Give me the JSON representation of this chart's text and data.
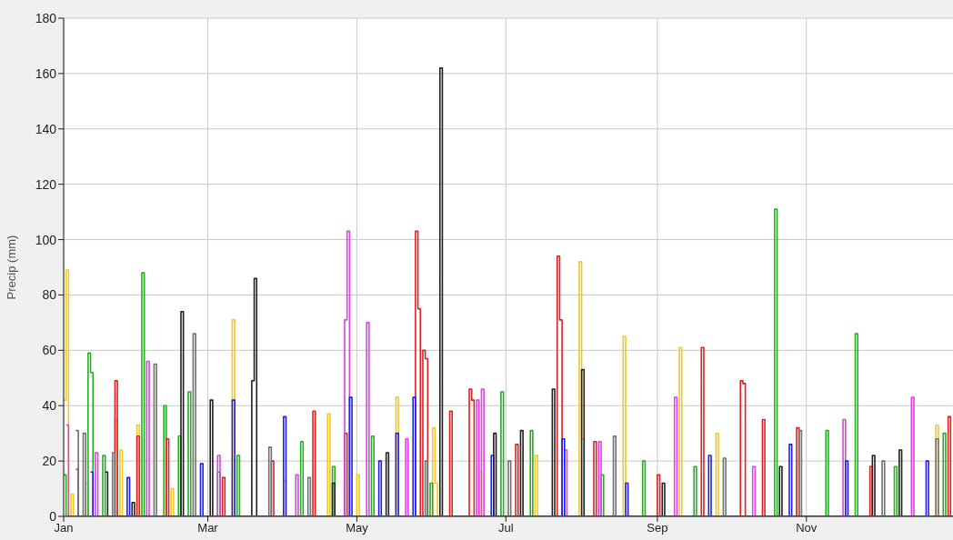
{
  "chart_data": {
    "type": "step",
    "ylabel": "Precip (mm)",
    "xlim": [
      "--01-01",
      "--12-31"
    ],
    "xticks": [
      {
        "value": "--01-01",
        "label": "Jan"
      },
      {
        "value": "--03-01",
        "label": "Mar"
      },
      {
        "value": "--05-01",
        "label": "May"
      },
      {
        "value": "--07-01",
        "label": "Jul"
      },
      {
        "value": "--09-01",
        "label": "Sep"
      },
      {
        "value": "--11-01",
        "label": "Nov"
      }
    ],
    "ylim": [
      0,
      180
    ],
    "yticks": [
      0,
      20,
      40,
      60,
      80,
      100,
      120,
      140,
      160,
      180
    ],
    "grid": true,
    "legend": false,
    "marker": "none",
    "line_style": "solid",
    "series": [
      {
        "color": "#f0c828",
        "x": [
          "--01-01",
          "--01-02",
          "--01-03",
          "--01-04",
          "--01-05",
          "--01-10",
          "--01-11",
          "--01-22",
          "--01-23",
          "--01-24",
          "--01-25",
          "--01-31",
          "--02-01",
          "--02-14",
          "--02-15",
          "--03-11",
          "--03-12",
          "--04-01",
          "--04-02",
          "--04-19",
          "--04-20",
          "--05-01",
          "--05-02",
          "--05-17",
          "--05-18",
          "--06-01",
          "--06-02",
          "--06-03",
          "--06-20",
          "--06-21",
          "--07-13",
          "--07-14",
          "--07-31",
          "--08-01",
          "--08-02",
          "--08-18",
          "--08-19",
          "--09-10",
          "--09-11",
          "--09-25",
          "--09-26",
          "--10-28",
          "--10-29",
          "--12-24",
          "--12-25",
          "--12-31"
        ],
        "values": [
          42,
          89,
          0,
          8,
          0,
          12,
          0,
          35,
          0,
          24,
          0,
          33,
          0,
          10,
          0,
          71,
          0,
          13,
          0,
          37,
          0,
          15,
          0,
          43,
          0,
          32,
          12,
          0,
          16,
          0,
          22,
          0,
          92,
          28,
          0,
          65,
          0,
          61,
          0,
          30,
          0,
          20,
          0,
          33,
          0,
          0
        ]
      },
      {
        "color": "#22b022",
        "x": [
          "--01-01",
          "--01-02",
          "--01-11",
          "--01-12",
          "--01-13",
          "--01-17",
          "--01-18",
          "--02-02",
          "--02-03",
          "--02-11",
          "--02-12",
          "--02-17",
          "--02-18",
          "--02-21",
          "--02-22",
          "--03-05",
          "--03-06",
          "--03-13",
          "--03-14",
          "--04-08",
          "--04-09",
          "--04-21",
          "--04-22",
          "--05-07",
          "--05-08",
          "--05-31",
          "--06-01",
          "--06-29",
          "--06-30",
          "--07-11",
          "--07-12",
          "--08-09",
          "--08-10",
          "--08-26",
          "--08-27",
          "--09-16",
          "--09-17",
          "--10-19",
          "--10-20",
          "--11-09",
          "--11-10",
          "--11-21",
          "--11-22",
          "--12-07",
          "--12-08",
          "--12-27",
          "--12-28",
          "--12-31"
        ],
        "values": [
          15,
          0,
          59,
          52,
          0,
          22,
          0,
          88,
          0,
          40,
          0,
          29,
          0,
          45,
          0,
          16,
          0,
          22,
          0,
          27,
          0,
          18,
          0,
          29,
          0,
          12,
          0,
          45,
          0,
          31,
          0,
          15,
          0,
          20,
          0,
          18,
          0,
          111,
          0,
          31,
          0,
          66,
          0,
          18,
          0,
          30,
          0,
          0
        ]
      },
      {
        "color": "#e02020",
        "x": [
          "--01-06",
          "--01-07",
          "--01-22",
          "--01-23",
          "--01-31",
          "--02-01",
          "--02-12",
          "--02-13",
          "--03-07",
          "--03-08",
          "--03-27",
          "--03-28",
          "--04-13",
          "--04-14",
          "--04-26",
          "--04-27",
          "--05-25",
          "--05-26",
          "--05-27",
          "--05-28",
          "--05-29",
          "--05-30",
          "--06-08",
          "--06-09",
          "--06-16",
          "--06-17",
          "--06-18",
          "--07-05",
          "--07-06",
          "--07-22",
          "--07-23",
          "--07-24",
          "--08-06",
          "--08-07",
          "--09-01",
          "--09-02",
          "--09-19",
          "--09-20",
          "--10-05",
          "--10-06",
          "--10-07",
          "--10-14",
          "--10-15",
          "--10-28",
          "--10-29",
          "--11-27",
          "--11-28",
          "--12-29",
          "--12-30",
          "--12-31"
        ],
        "values": [
          17,
          0,
          49,
          0,
          29,
          0,
          28,
          0,
          14,
          0,
          20,
          0,
          38,
          0,
          30,
          0,
          103,
          75,
          0,
          60,
          57,
          0,
          38,
          0,
          46,
          42,
          0,
          26,
          0,
          94,
          71,
          0,
          27,
          0,
          15,
          0,
          61,
          0,
          49,
          48,
          0,
          35,
          0,
          32,
          0,
          18,
          0,
          36,
          0,
          0
        ]
      },
      {
        "color": "#e040e8",
        "x": [
          "--01-02",
          "--01-03",
          "--01-14",
          "--01-15",
          "--02-04",
          "--02-05",
          "--03-05",
          "--03-06",
          "--04-06",
          "--04-07",
          "--04-26",
          "--04-27",
          "--04-28",
          "--05-05",
          "--05-06",
          "--05-21",
          "--05-22",
          "--06-19",
          "--06-20",
          "--06-21",
          "--06-22",
          "--07-25",
          "--07-26",
          "--08-08",
          "--08-09",
          "--09-08",
          "--09-09",
          "--10-10",
          "--10-11",
          "--11-16",
          "--11-17",
          "--12-14",
          "--12-15",
          "--12-31"
        ],
        "values": [
          33,
          0,
          23,
          0,
          56,
          0,
          22,
          0,
          15,
          0,
          71,
          103,
          0,
          70,
          0,
          28,
          0,
          42,
          0,
          46,
          0,
          24,
          0,
          27,
          0,
          43,
          0,
          18,
          0,
          35,
          0,
          43,
          0,
          0
        ]
      },
      {
        "color": "#2020e0",
        "x": [
          "--01-12",
          "--01-13",
          "--01-27",
          "--01-28",
          "--02-26",
          "--02-27",
          "--03-11",
          "--03-12",
          "--04-01",
          "--04-02",
          "--04-28",
          "--04-29",
          "--05-10",
          "--05-11",
          "--05-17",
          "--05-18",
          "--05-24",
          "--05-25",
          "--06-25",
          "--06-26",
          "--07-24",
          "--07-25",
          "--08-19",
          "--08-20",
          "--09-22",
          "--09-23",
          "--10-25",
          "--10-26",
          "--11-17",
          "--11-18",
          "--12-20",
          "--12-21",
          "--12-31"
        ],
        "values": [
          16,
          0,
          14,
          0,
          19,
          0,
          42,
          0,
          36,
          0,
          43,
          0,
          20,
          0,
          30,
          0,
          43,
          0,
          22,
          0,
          28,
          0,
          12,
          0,
          22,
          0,
          26,
          0,
          20,
          0,
          20,
          0,
          0
        ]
      },
      {
        "color": "#202020",
        "x": [
          "--01-18",
          "--01-19",
          "--01-29",
          "--01-30",
          "--02-18",
          "--02-19",
          "--03-02",
          "--03-03",
          "--03-19",
          "--03-20",
          "--03-21",
          "--04-21",
          "--04-22",
          "--05-13",
          "--05-14",
          "--06-04",
          "--06-05",
          "--06-26",
          "--06-27",
          "--07-07",
          "--07-08",
          "--07-20",
          "--07-21",
          "--08-01",
          "--08-02",
          "--09-03",
          "--09-04",
          "--10-21",
          "--10-22",
          "--11-28",
          "--11-29",
          "--12-09",
          "--12-10",
          "--12-31"
        ],
        "values": [
          16,
          0,
          5,
          0,
          74,
          0,
          42,
          0,
          49,
          86,
          0,
          12,
          0,
          23,
          0,
          162,
          0,
          30,
          0,
          31,
          0,
          46,
          0,
          53,
          0,
          12,
          0,
          18,
          0,
          22,
          0,
          24,
          0,
          0
        ]
      },
      {
        "color": "#707070",
        "x": [
          "--01-06",
          "--01-07",
          "--01-09",
          "--01-10",
          "--01-21",
          "--01-22",
          "--02-07",
          "--02-08",
          "--02-23",
          "--02-24",
          "--03-26",
          "--03-27",
          "--04-11",
          "--04-12",
          "--05-29",
          "--05-30",
          "--07-02",
          "--07-03",
          "--08-14",
          "--08-15",
          "--09-28",
          "--09-29",
          "--10-29",
          "--10-30",
          "--12-02",
          "--12-03",
          "--12-24",
          "--12-25",
          "--12-31"
        ],
        "values": [
          31,
          0,
          30,
          0,
          23,
          0,
          55,
          0,
          66,
          0,
          25,
          0,
          14,
          0,
          20,
          0,
          20,
          0,
          29,
          0,
          21,
          0,
          31,
          0,
          20,
          0,
          28,
          0,
          0
        ]
      }
    ]
  }
}
